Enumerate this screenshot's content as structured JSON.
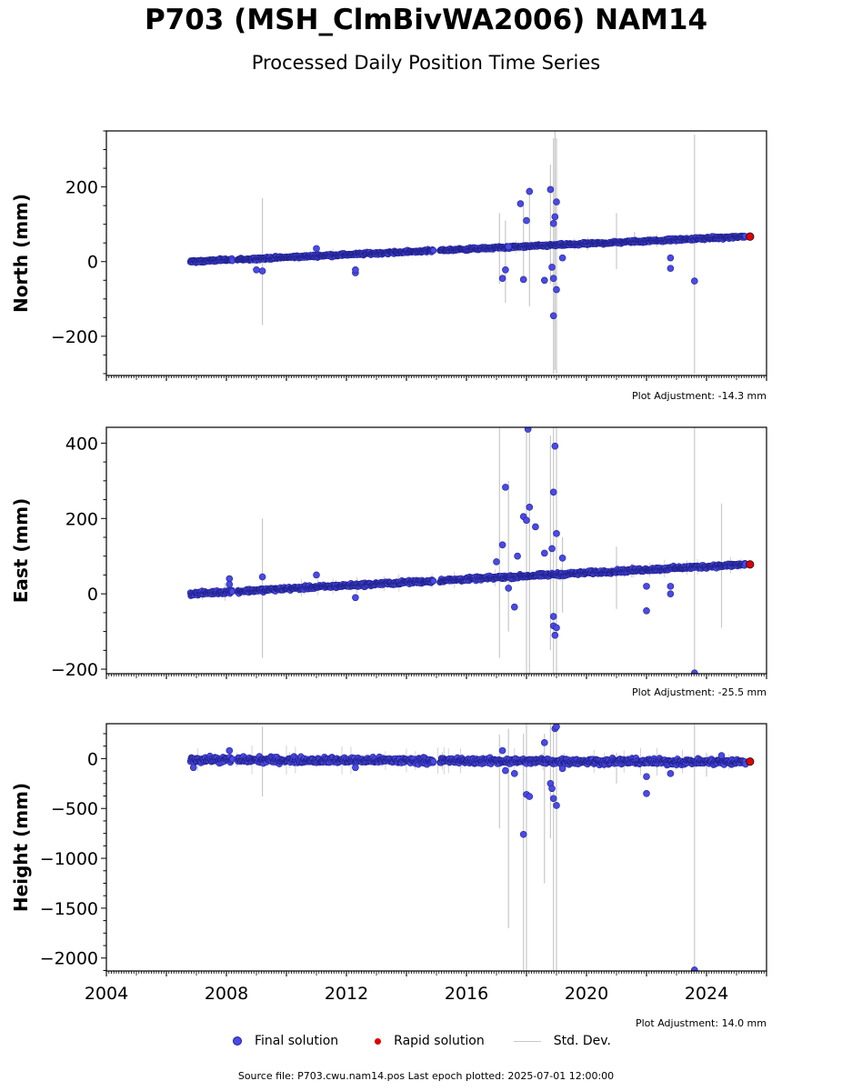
{
  "header": {
    "title": "P703 (MSH_ClmBivWA2006) NAM14",
    "subtitle": "Processed Daily Position Time Series"
  },
  "legend": {
    "final": "Final solution",
    "rapid": "Rapid solution",
    "std": "Std. Dev."
  },
  "footer": {
    "source": "Source file: P703.cwu.nam14.pos  Last epoch plotted: 2025-07-01 12:00:00"
  },
  "colors": {
    "final": "#4a4ae6",
    "final_edge": "#20208a",
    "rapid": "#e00000",
    "stddev": "#c8c8c8"
  },
  "chart_data": [
    {
      "type": "scatter",
      "ylabel": "North (mm)",
      "adjustment": "Plot Adjustment: -14.3 mm",
      "xlim": [
        2004,
        2026
      ],
      "ylim": [
        -305,
        350
      ],
      "yticks": [
        -200,
        0,
        200
      ],
      "ytick_labels": [
        "−200",
        "0",
        "200"
      ],
      "trend": [
        [
          2006.8,
          0
        ],
        [
          2025.3,
          67
        ]
      ],
      "gaps": [
        [
          2008.2,
          2008.35
        ],
        [
          2014.9,
          2015.1
        ]
      ],
      "scatter": 3,
      "rapid": {
        "x": 2025.45,
        "y": 67
      },
      "outliers": [
        [
          2009.0,
          -22
        ],
        [
          2009.2,
          -25
        ],
        [
          2011.0,
          35
        ],
        [
          2012.3,
          -30
        ],
        [
          2012.3,
          -22
        ],
        [
          2017.2,
          -45
        ],
        [
          2017.3,
          -22
        ],
        [
          2017.4,
          40
        ],
        [
          2017.8,
          155
        ],
        [
          2017.9,
          -48
        ],
        [
          2018.0,
          110
        ],
        [
          2018.1,
          188
        ],
        [
          2018.6,
          -50
        ],
        [
          2018.8,
          193
        ],
        [
          2018.9,
          102
        ],
        [
          2018.95,
          120
        ],
        [
          2019.0,
          160
        ],
        [
          2019.0,
          -75
        ],
        [
          2018.9,
          -145
        ],
        [
          2018.9,
          -45
        ],
        [
          2018.85,
          -15
        ],
        [
          2019.2,
          10
        ],
        [
          2022.8,
          10
        ],
        [
          2022.8,
          -18
        ],
        [
          2023.6,
          -52
        ]
      ],
      "errorbars": [
        [
          2009.2,
          -170,
          170
        ],
        [
          2017.1,
          -60,
          130
        ],
        [
          2017.3,
          -110,
          110
        ],
        [
          2017.9,
          -50,
          150
        ],
        [
          2018.1,
          -120,
          200
        ],
        [
          2018.8,
          -60,
          260
        ],
        [
          2018.9,
          -300,
          330
        ],
        [
          2019.0,
          -300,
          330
        ],
        [
          2018.95,
          -290,
          350
        ],
        [
          2021.0,
          -20,
          130
        ],
        [
          2023.6,
          -300,
          340
        ],
        [
          2021.6,
          40,
          80
        ]
      ]
    },
    {
      "type": "scatter",
      "ylabel": "East (mm)",
      "adjustment": "Plot Adjustment: -25.5 mm",
      "xlim": [
        2004,
        2026
      ],
      "ylim": [
        -212,
        442
      ],
      "yticks": [
        -200,
        0,
        200,
        400
      ],
      "ytick_labels": [
        "−200",
        "0",
        "200",
        "400"
      ],
      "trend": [
        [
          2006.8,
          0
        ],
        [
          2025.3,
          78
        ]
      ],
      "gaps": [
        [
          2008.2,
          2008.35
        ],
        [
          2014.9,
          2015.1
        ]
      ],
      "scatter": 4,
      "rapid": {
        "x": 2025.45,
        "y": 78
      },
      "outliers": [
        [
          2008.1,
          40
        ],
        [
          2008.1,
          25
        ],
        [
          2009.2,
          45
        ],
        [
          2011.0,
          50
        ],
        [
          2012.3,
          -10
        ],
        [
          2017.0,
          85
        ],
        [
          2017.2,
          130
        ],
        [
          2017.3,
          283
        ],
        [
          2017.4,
          15
        ],
        [
          2017.6,
          -35
        ],
        [
          2017.7,
          100
        ],
        [
          2017.9,
          205
        ],
        [
          2018.0,
          195
        ],
        [
          2018.1,
          230
        ],
        [
          2018.3,
          178
        ],
        [
          2018.6,
          108
        ],
        [
          2018.85,
          120
        ],
        [
          2018.9,
          270
        ],
        [
          2018.95,
          392
        ],
        [
          2018.95,
          -110
        ],
        [
          2018.9,
          -85
        ],
        [
          2018.9,
          -60
        ],
        [
          2018.05,
          437
        ],
        [
          2019.0,
          160
        ],
        [
          2019.0,
          -90
        ],
        [
          2019.2,
          95
        ],
        [
          2022.0,
          20
        ],
        [
          2022.0,
          -45
        ],
        [
          2022.8,
          0
        ],
        [
          2022.8,
          20
        ],
        [
          2023.6,
          -210
        ]
      ],
      "errorbars": [
        [
          2009.2,
          -170,
          200
        ],
        [
          2017.1,
          -170,
          442
        ],
        [
          2017.4,
          -100,
          300
        ],
        [
          2018.0,
          -212,
          442
        ],
        [
          2018.1,
          -212,
          442
        ],
        [
          2018.8,
          -150,
          420
        ],
        [
          2018.9,
          -212,
          442
        ],
        [
          2019.0,
          -212,
          442
        ],
        [
          2021.0,
          -40,
          125
        ],
        [
          2023.6,
          -212,
          442
        ],
        [
          2024.5,
          -90,
          240
        ],
        [
          2019.2,
          -50,
          150
        ]
      ]
    },
    {
      "type": "scatter",
      "ylabel": "Height (mm)",
      "adjustment": "Plot Adjustment: 14.0 mm",
      "xlim": [
        2004,
        2026
      ],
      "ylim": [
        -2130,
        350
      ],
      "yticks": [
        -2000,
        -1500,
        -1000,
        -500,
        0
      ],
      "ytick_labels": [
        "−2000",
        "−1500",
        "−1000",
        "−500",
        "0"
      ],
      "xticks": [
        2004,
        2008,
        2012,
        2016,
        2020,
        2024
      ],
      "xtick_labels": [
        "2004",
        "2008",
        "2012",
        "2016",
        "2020",
        "2024"
      ],
      "trend": [
        [
          2006.8,
          -10
        ],
        [
          2025.3,
          -35
        ]
      ],
      "gaps": [
        [
          2008.2,
          2008.35
        ],
        [
          2014.9,
          2015.1
        ]
      ],
      "scatter": 25,
      "rapid": {
        "x": 2025.45,
        "y": -30
      },
      "outliers": [
        [
          2006.9,
          -90
        ],
        [
          2008.1,
          80
        ],
        [
          2012.3,
          -90
        ],
        [
          2017.2,
          80
        ],
        [
          2017.3,
          -120
        ],
        [
          2017.6,
          -150
        ],
        [
          2017.9,
          -760
        ],
        [
          2018.0,
          -360
        ],
        [
          2018.1,
          -380
        ],
        [
          2018.6,
          160
        ],
        [
          2018.8,
          -250
        ],
        [
          2018.85,
          -300
        ],
        [
          2018.9,
          -400
        ],
        [
          2018.95,
          300
        ],
        [
          2019.0,
          -470
        ],
        [
          2019.0,
          320
        ],
        [
          2019.2,
          -100
        ],
        [
          2022.0,
          -180
        ],
        [
          2022.0,
          -350
        ],
        [
          2022.8,
          -150
        ],
        [
          2023.6,
          -2120
        ],
        [
          2024.5,
          30
        ]
      ],
      "errorbars": [
        [
          2009.2,
          -380,
          320
        ],
        [
          2017.1,
          -700,
          240
        ],
        [
          2017.4,
          -1700,
          300
        ],
        [
          2017.9,
          -2130,
          250
        ],
        [
          2018.0,
          -2130,
          350
        ],
        [
          2018.6,
          -1250,
          250
        ],
        [
          2018.8,
          -800,
          350
        ],
        [
          2018.9,
          -2130,
          350
        ],
        [
          2019.0,
          -2130,
          350
        ],
        [
          2021.0,
          -250,
          60
        ],
        [
          2023.6,
          -2130,
          350
        ],
        [
          2024.0,
          -180,
          60
        ]
      ]
    }
  ]
}
